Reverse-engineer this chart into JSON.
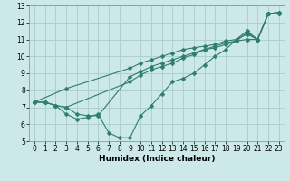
{
  "xlabel": "Humidex (Indice chaleur)",
  "xlim": [
    -0.5,
    23.5
  ],
  "ylim": [
    5,
    13
  ],
  "yticks": [
    5,
    6,
    7,
    8,
    9,
    10,
    11,
    12,
    13
  ],
  "xticks": [
    0,
    1,
    2,
    3,
    4,
    5,
    6,
    7,
    8,
    9,
    10,
    11,
    12,
    13,
    14,
    15,
    16,
    17,
    18,
    19,
    20,
    21,
    22,
    23
  ],
  "bg_color": "#cce8e8",
  "grid_color": "#aacccc",
  "line_color": "#2e7d6e",
  "line1": [
    [
      0,
      7.3
    ],
    [
      1,
      7.3
    ],
    [
      2,
      7.1
    ],
    [
      3,
      6.6
    ],
    [
      4,
      6.3
    ],
    [
      5,
      6.4
    ],
    [
      6,
      6.6
    ],
    [
      7,
      5.5
    ],
    [
      8,
      5.2
    ],
    [
      9,
      5.2
    ],
    [
      10,
      6.5
    ],
    [
      11,
      7.1
    ],
    [
      12,
      7.8
    ],
    [
      13,
      8.5
    ],
    [
      14,
      8.7
    ],
    [
      15,
      9.0
    ],
    [
      16,
      9.5
    ],
    [
      17,
      10.0
    ],
    [
      18,
      10.4
    ],
    [
      19,
      11.0
    ],
    [
      20,
      11.3
    ],
    [
      21,
      11.0
    ],
    [
      22,
      12.5
    ],
    [
      23,
      12.5
    ]
  ],
  "line2": [
    [
      0,
      7.3
    ],
    [
      1,
      7.3
    ],
    [
      2,
      7.1
    ],
    [
      3,
      7.0
    ],
    [
      4,
      6.6
    ],
    [
      5,
      6.5
    ],
    [
      6,
      6.5
    ],
    [
      9,
      8.8
    ],
    [
      10,
      9.1
    ],
    [
      11,
      9.4
    ],
    [
      12,
      9.6
    ],
    [
      13,
      9.8
    ],
    [
      14,
      10.0
    ],
    [
      15,
      10.2
    ],
    [
      16,
      10.4
    ],
    [
      17,
      10.6
    ],
    [
      18,
      10.8
    ],
    [
      19,
      10.9
    ],
    [
      20,
      11.0
    ],
    [
      21,
      11.0
    ],
    [
      22,
      12.5
    ],
    [
      23,
      12.5
    ]
  ],
  "line3": [
    [
      0,
      7.3
    ],
    [
      1,
      7.3
    ],
    [
      2,
      7.1
    ],
    [
      3,
      7.0
    ],
    [
      9,
      8.5
    ],
    [
      10,
      8.9
    ],
    [
      11,
      9.2
    ],
    [
      12,
      9.4
    ],
    [
      13,
      9.6
    ],
    [
      14,
      9.9
    ],
    [
      15,
      10.1
    ],
    [
      16,
      10.4
    ],
    [
      17,
      10.5
    ],
    [
      18,
      10.7
    ],
    [
      19,
      10.9
    ],
    [
      20,
      11.4
    ],
    [
      21,
      11.0
    ],
    [
      22,
      12.5
    ],
    [
      23,
      12.6
    ]
  ],
  "line4": [
    [
      0,
      7.3
    ],
    [
      3,
      8.1
    ],
    [
      9,
      9.3
    ],
    [
      10,
      9.6
    ],
    [
      11,
      9.8
    ],
    [
      12,
      10.0
    ],
    [
      13,
      10.2
    ],
    [
      14,
      10.4
    ],
    [
      15,
      10.5
    ],
    [
      16,
      10.6
    ],
    [
      17,
      10.7
    ],
    [
      18,
      10.9
    ],
    [
      19,
      11.0
    ],
    [
      20,
      11.5
    ],
    [
      21,
      11.0
    ],
    [
      22,
      12.5
    ],
    [
      23,
      12.6
    ]
  ]
}
